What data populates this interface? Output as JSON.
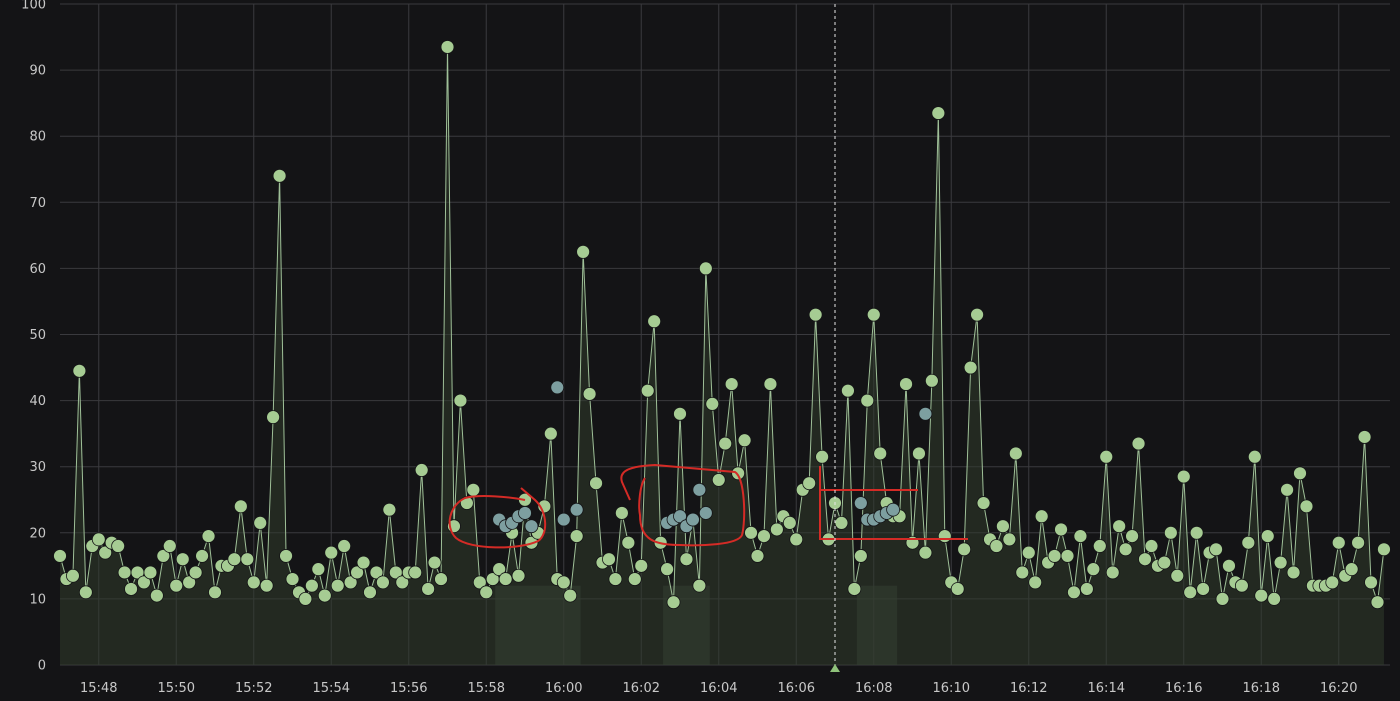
{
  "colors": {
    "background": "#141416",
    "grid": "#3a3a3e",
    "series_line": "#9fc098",
    "series_fill": "#2f3a2b",
    "point": "#a6cc93",
    "point_highlight": "#7d9fa0",
    "crosshair": "#e6e6e6",
    "annotation": "#d42b26",
    "tick_text": "#c8c8c8"
  },
  "chart_data": {
    "type": "area",
    "title": "",
    "xlabel": "",
    "ylabel": "",
    "ylim": [
      0,
      100
    ],
    "xlim": [
      "15:47:00",
      "16:21:30"
    ],
    "y_ticks": [
      "0",
      "10",
      "20",
      "30",
      "40",
      "50",
      "60",
      "70",
      "80",
      "90",
      "100"
    ],
    "x_ticks": [
      "15:48",
      "15:50",
      "15:52",
      "15:54",
      "15:56",
      "15:58",
      "16:00",
      "16:02",
      "16:04",
      "16:06",
      "16:08",
      "16:10",
      "16:12",
      "16:14",
      "16:16",
      "16:18",
      "16:20"
    ],
    "grid": true,
    "legend": "none",
    "crosshair_at": "16:07:00",
    "series": [
      {
        "points": [
          [
            "15:47:00",
            16.5
          ],
          [
            "15:47:10",
            13
          ],
          [
            "15:47:20",
            13.5
          ],
          [
            "15:47:30",
            44.5
          ],
          [
            "15:47:40",
            11
          ],
          [
            "15:47:50",
            18
          ],
          [
            "15:48:00",
            19
          ],
          [
            "15:48:10",
            17
          ],
          [
            "15:48:20",
            18.5
          ],
          [
            "15:48:30",
            18
          ],
          [
            "15:48:40",
            14
          ],
          [
            "15:48:50",
            11.5
          ],
          [
            "15:49:00",
            14
          ],
          [
            "15:49:10",
            12.5
          ],
          [
            "15:49:20",
            14
          ],
          [
            "15:49:30",
            10.5
          ],
          [
            "15:49:40",
            16.5
          ],
          [
            "15:49:50",
            18
          ],
          [
            "15:50:00",
            12
          ],
          [
            "15:50:10",
            16
          ],
          [
            "15:50:20",
            12.5
          ],
          [
            "15:50:30",
            14
          ],
          [
            "15:50:40",
            16.5
          ],
          [
            "15:50:50",
            19.5
          ],
          [
            "15:51:00",
            11
          ],
          [
            "15:51:10",
            15
          ],
          [
            "15:51:20",
            15
          ],
          [
            "15:51:30",
            16
          ],
          [
            "15:51:40",
            24
          ],
          [
            "15:51:50",
            16
          ],
          [
            "15:52:00",
            12.5
          ],
          [
            "15:52:10",
            21.5
          ],
          [
            "15:52:20",
            12
          ],
          [
            "15:52:30",
            37.5
          ],
          [
            "15:52:40",
            74
          ],
          [
            "15:52:50",
            16.5
          ],
          [
            "15:53:00",
            13
          ],
          [
            "15:53:10",
            11
          ],
          [
            "15:53:20",
            10
          ],
          [
            "15:53:30",
            12
          ],
          [
            "15:53:40",
            14.5
          ],
          [
            "15:53:50",
            10.5
          ],
          [
            "15:54:00",
            17
          ],
          [
            "15:54:10",
            12
          ],
          [
            "15:54:20",
            18
          ],
          [
            "15:54:30",
            12.5
          ],
          [
            "15:54:40",
            14
          ],
          [
            "15:54:50",
            15.5
          ],
          [
            "15:55:00",
            11
          ],
          [
            "15:55:10",
            14
          ],
          [
            "15:55:20",
            12.5
          ],
          [
            "15:55:30",
            23.5
          ],
          [
            "15:55:40",
            14
          ],
          [
            "15:55:50",
            12.5
          ],
          [
            "15:56:00",
            14
          ],
          [
            "15:56:10",
            14
          ],
          [
            "15:56:20",
            29.5
          ],
          [
            "15:56:30",
            11.5
          ],
          [
            "15:56:40",
            15.5
          ],
          [
            "15:56:50",
            13
          ],
          [
            "15:57:00",
            93.5
          ],
          [
            "15:57:10",
            21
          ],
          [
            "15:57:20",
            40
          ],
          [
            "15:57:30",
            24.5
          ],
          [
            "15:57:40",
            26.5
          ],
          [
            "15:57:50",
            12.5
          ],
          [
            "15:58:00",
            11
          ],
          [
            "15:58:10",
            13
          ],
          [
            "15:58:20",
            14.5
          ],
          [
            "15:58:30",
            13
          ],
          [
            "15:58:40",
            20
          ],
          [
            "15:58:50",
            13.5
          ],
          [
            "15:59:00",
            25
          ],
          [
            "15:59:10",
            18.5
          ],
          [
            "15:59:20",
            20
          ],
          [
            "15:59:30",
            24
          ],
          [
            "15:59:40",
            35
          ],
          [
            "15:59:50",
            13
          ],
          [
            "16:00:00",
            12.5
          ],
          [
            "16:00:10",
            10.5
          ],
          [
            "16:00:20",
            19.5
          ],
          [
            "16:00:30",
            62.5
          ],
          [
            "16:00:40",
            41
          ],
          [
            "16:00:50",
            27.5
          ],
          [
            "16:01:00",
            15.5
          ],
          [
            "16:01:10",
            16
          ],
          [
            "16:01:20",
            13
          ],
          [
            "16:01:30",
            23
          ],
          [
            "16:01:40",
            18.5
          ],
          [
            "16:01:50",
            13
          ],
          [
            "16:02:00",
            15
          ],
          [
            "16:02:10",
            41.5
          ],
          [
            "16:02:20",
            52
          ],
          [
            "16:02:30",
            18.5
          ],
          [
            "16:02:40",
            14.5
          ],
          [
            "16:02:50",
            9.5
          ],
          [
            "16:03:00",
            38
          ],
          [
            "16:03:10",
            16
          ],
          [
            "16:03:20",
            22
          ],
          [
            "16:03:30",
            12
          ],
          [
            "16:03:40",
            60
          ],
          [
            "16:03:50",
            39.5
          ],
          [
            "16:04:00",
            28
          ],
          [
            "16:04:10",
            33.5
          ],
          [
            "16:04:20",
            42.5
          ],
          [
            "16:04:30",
            29
          ],
          [
            "16:04:40",
            34
          ],
          [
            "16:04:50",
            20
          ],
          [
            "16:05:00",
            16.5
          ],
          [
            "16:05:10",
            19.5
          ],
          [
            "16:05:20",
            42.5
          ],
          [
            "16:05:30",
            20.5
          ],
          [
            "16:05:40",
            22.5
          ],
          [
            "16:05:50",
            21.5
          ],
          [
            "16:06:00",
            19
          ],
          [
            "16:06:10",
            26.5
          ],
          [
            "16:06:20",
            27.5
          ],
          [
            "16:06:30",
            53
          ],
          [
            "16:06:40",
            31.5
          ],
          [
            "16:06:50",
            19
          ],
          [
            "16:07:00",
            24.5
          ],
          [
            "16:07:10",
            21.5
          ],
          [
            "16:07:20",
            41.5
          ],
          [
            "16:07:30",
            11.5
          ],
          [
            "16:07:40",
            16.5
          ],
          [
            "16:07:50",
            40
          ],
          [
            "16:08:00",
            53
          ],
          [
            "16:08:10",
            32
          ],
          [
            "16:08:20",
            24.5
          ],
          [
            "16:08:30",
            22.5
          ],
          [
            "16:08:40",
            22.5
          ],
          [
            "16:08:50",
            42.5
          ],
          [
            "16:09:00",
            18.5
          ],
          [
            "16:09:10",
            32
          ],
          [
            "16:09:20",
            17
          ],
          [
            "16:09:30",
            43
          ],
          [
            "16:09:40",
            83.5
          ],
          [
            "16:09:50",
            19.5
          ],
          [
            "16:10:00",
            12.5
          ],
          [
            "16:10:10",
            11.5
          ],
          [
            "16:10:20",
            17.5
          ],
          [
            "16:10:30",
            45
          ],
          [
            "16:10:40",
            53
          ],
          [
            "16:10:50",
            24.5
          ],
          [
            "16:11:00",
            19
          ],
          [
            "16:11:10",
            18
          ],
          [
            "16:11:20",
            21
          ],
          [
            "16:11:30",
            19
          ],
          [
            "16:11:40",
            32
          ],
          [
            "16:11:50",
            14
          ],
          [
            "16:12:00",
            17
          ],
          [
            "16:12:10",
            12.5
          ],
          [
            "16:12:20",
            22.5
          ],
          [
            "16:12:30",
            15.5
          ],
          [
            "16:12:40",
            16.5
          ],
          [
            "16:12:50",
            20.5
          ],
          [
            "16:13:00",
            16.5
          ],
          [
            "16:13:10",
            11
          ],
          [
            "16:13:20",
            19.5
          ],
          [
            "16:13:30",
            11.5
          ],
          [
            "16:13:40",
            14.5
          ],
          [
            "16:13:50",
            18
          ],
          [
            "16:14:00",
            31.5
          ],
          [
            "16:14:10",
            14
          ],
          [
            "16:14:20",
            21
          ],
          [
            "16:14:30",
            17.5
          ],
          [
            "16:14:40",
            19.5
          ],
          [
            "16:14:50",
            33.5
          ],
          [
            "16:15:00",
            16
          ],
          [
            "16:15:10",
            18
          ],
          [
            "16:15:20",
            15
          ],
          [
            "16:15:30",
            15.5
          ],
          [
            "16:15:40",
            20
          ],
          [
            "16:15:50",
            13.5
          ],
          [
            "16:16:00",
            28.5
          ],
          [
            "16:16:10",
            11
          ],
          [
            "16:16:20",
            20
          ],
          [
            "16:16:30",
            11.5
          ],
          [
            "16:16:40",
            17
          ],
          [
            "16:16:50",
            17.5
          ],
          [
            "16:17:00",
            10
          ],
          [
            "16:17:10",
            15
          ],
          [
            "16:17:20",
            12.5
          ],
          [
            "16:17:30",
            12
          ],
          [
            "16:17:40",
            18.5
          ],
          [
            "16:17:50",
            31.5
          ],
          [
            "16:18:00",
            10.5
          ],
          [
            "16:18:10",
            19.5
          ],
          [
            "16:18:20",
            10
          ],
          [
            "16:18:30",
            15.5
          ],
          [
            "16:18:40",
            26.5
          ],
          [
            "16:18:50",
            14
          ],
          [
            "16:19:00",
            29
          ],
          [
            "16:19:10",
            24
          ],
          [
            "16:19:20",
            12
          ],
          [
            "16:19:30",
            12
          ],
          [
            "16:19:40",
            12
          ],
          [
            "16:19:50",
            12.5
          ],
          [
            "16:20:00",
            18.5
          ],
          [
            "16:20:10",
            13.5
          ],
          [
            "16:20:20",
            14.5
          ],
          [
            "16:20:30",
            18.5
          ],
          [
            "16:20:40",
            34.5
          ],
          [
            "16:20:50",
            12.5
          ],
          [
            "16:21:00",
            9.5
          ],
          [
            "16:21:10",
            17.5
          ]
        ],
        "highlighted_points": [
          [
            "15:58:20",
            22
          ],
          [
            "15:58:30",
            21
          ],
          [
            "15:58:40",
            21.5
          ],
          [
            "15:58:50",
            22.5
          ],
          [
            "15:59:00",
            23
          ],
          [
            "15:59:10",
            21
          ],
          [
            "15:59:50",
            42
          ],
          [
            "16:00:00",
            22
          ],
          [
            "16:00:20",
            23.5
          ],
          [
            "16:02:40",
            21.5
          ],
          [
            "16:02:50",
            22
          ],
          [
            "16:03:00",
            22.5
          ],
          [
            "16:03:10",
            21
          ],
          [
            "16:03:20",
            22
          ],
          [
            "16:03:30",
            26.5
          ],
          [
            "16:03:40",
            23
          ],
          [
            "16:07:40",
            24.5
          ],
          [
            "16:07:50",
            22
          ],
          [
            "16:08:00",
            22
          ],
          [
            "16:08:10",
            22.5
          ],
          [
            "16:08:20",
            23
          ],
          [
            "16:08:30",
            23.5
          ],
          [
            "16:09:20",
            38
          ]
        ]
      }
    ]
  }
}
